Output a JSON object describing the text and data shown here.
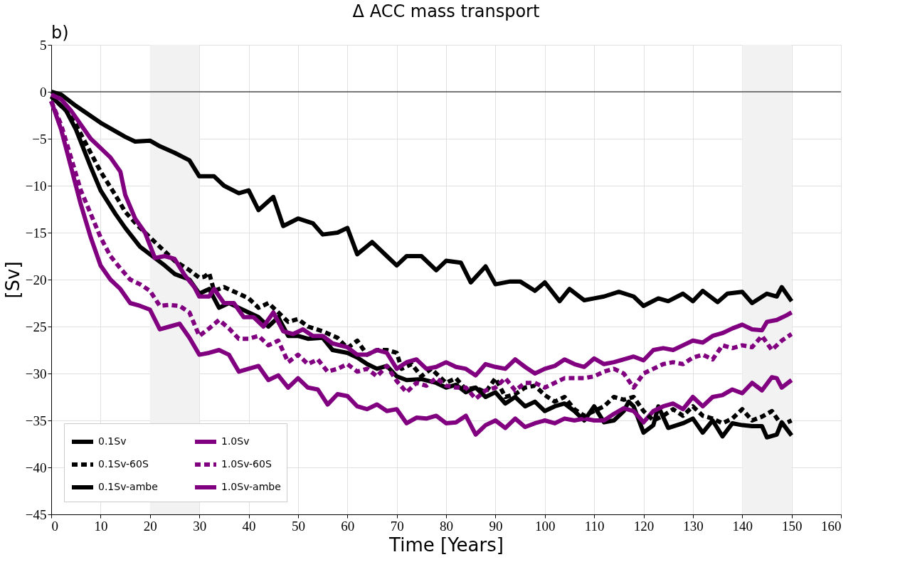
{
  "chart_data": {
    "type": "line",
    "title": "Δ ACC mass transport",
    "annotations": [
      "b)"
    ],
    "xlabel": "Time [Years]",
    "ylabel": "[Sv]",
    "xlim": [
      0,
      160
    ],
    "xticks": [
      0,
      10,
      20,
      30,
      40,
      50,
      60,
      70,
      80,
      90,
      100,
      110,
      120,
      130,
      140,
      150,
      160
    ],
    "ylim": [
      -45,
      5
    ],
    "yticks": [
      -45,
      -40,
      -35,
      -30,
      -25,
      -20,
      -15,
      -10,
      -5,
      0,
      5
    ],
    "grid": true,
    "legend": "bottom left",
    "marker": "none",
    "bands": [
      {
        "axis": "x",
        "from": 20,
        "to": 30,
        "color": "#f2f2f2"
      },
      {
        "axis": "x",
        "from": 140,
        "to": 150,
        "color": "#f2f2f2"
      }
    ],
    "ref_lines": [
      {
        "axis": "y",
        "value": 0,
        "color": "#000000"
      }
    ],
    "series": [
      {
        "name": "0.1Sv",
        "color": "#000000",
        "line_style": "solid",
        "x": [
          0,
          3,
          5,
          8,
          10,
          13,
          15,
          18,
          20,
          23,
          25,
          28,
          30,
          32,
          34,
          36,
          38,
          40,
          42,
          44,
          46,
          48,
          50,
          52,
          55,
          57,
          60,
          62,
          64,
          66,
          68,
          70,
          72,
          75,
          78,
          80,
          82,
          84,
          86,
          88,
          90,
          92,
          94,
          96,
          98,
          100,
          102,
          104,
          106,
          108,
          110,
          112,
          114,
          116,
          117,
          118,
          120,
          122,
          123,
          125,
          128,
          130,
          132,
          134,
          136,
          138,
          140,
          142,
          144,
          145,
          147,
          148,
          150
        ],
        "values": [
          -0.5,
          -2,
          -4,
          -8,
          -10.5,
          -13,
          -14.5,
          -16.5,
          -17.3,
          -18.5,
          -19.4,
          -20,
          -21.5,
          -21,
          -23,
          -22.5,
          -23,
          -23.5,
          -24,
          -25,
          -24,
          -26,
          -26,
          -26.3,
          -26.2,
          -27.5,
          -27.8,
          -28.3,
          -29,
          -29.5,
          -29.2,
          -30.3,
          -30.7,
          -30.6,
          -31,
          -31.5,
          -31.2,
          -32,
          -31.5,
          -32.5,
          -32,
          -33.2,
          -32.5,
          -33.5,
          -33,
          -34,
          -33.5,
          -33.2,
          -34,
          -35,
          -33.5,
          -35.2,
          -35,
          -34,
          -33,
          -33.5,
          -36.3,
          -35.5,
          -33.5,
          -35.8,
          -35.3,
          -34.8,
          -36.3,
          -35,
          -36.7,
          -35.3,
          -35.5,
          -35.6,
          -35.6,
          -36.8,
          -36.5,
          -35.2,
          -36.6
        ]
      },
      {
        "name": "1.0Sv",
        "color": "#800080",
        "line_style": "solid",
        "x": [
          0,
          2,
          4,
          6,
          8,
          10,
          12,
          14,
          16,
          18,
          20,
          22,
          24,
          26,
          28,
          30,
          32,
          34,
          36,
          38,
          40,
          42,
          44,
          46,
          48,
          50,
          52,
          54,
          56,
          58,
          60,
          62,
          64,
          66,
          68,
          70,
          72,
          74,
          76,
          78,
          80,
          82,
          84,
          86,
          88,
          90,
          92,
          94,
          96,
          98,
          100,
          102,
          104,
          106,
          108,
          110,
          112,
          114,
          116,
          118,
          120,
          122,
          124,
          126,
          128,
          130,
          132,
          134,
          136,
          138,
          140,
          142,
          144,
          146,
          147,
          148,
          150
        ],
        "values": [
          -1,
          -4,
          -8,
          -12,
          -15.5,
          -18.5,
          -20,
          -21,
          -22.5,
          -22.8,
          -23.2,
          -25.3,
          -25,
          -24.7,
          -26.2,
          -28,
          -27.8,
          -27.5,
          -28,
          -29.8,
          -29.5,
          -29.2,
          -30.7,
          -30.2,
          -31.5,
          -30.5,
          -31.5,
          -31.7,
          -33.3,
          -32.2,
          -32.4,
          -33.5,
          -33.8,
          -33.3,
          -34,
          -33.8,
          -35.3,
          -34.7,
          -34.8,
          -34.5,
          -35.3,
          -35.2,
          -34.5,
          -36.5,
          -35.5,
          -35,
          -35.8,
          -34.8,
          -35.7,
          -35.3,
          -35,
          -35.3,
          -34.8,
          -35,
          -34.8,
          -35,
          -35,
          -34.3,
          -33.7,
          -34,
          -35.2,
          -34,
          -33.5,
          -33.2,
          -33.8,
          -32.5,
          -33.5,
          -32.5,
          -32.3,
          -31.7,
          -32.1,
          -31,
          -31.8,
          -30.4,
          -30.5,
          -31.5,
          -30.7
        ]
      },
      {
        "name": "0.1Sv-60S",
        "color": "#000000",
        "line_style": "dashed",
        "x": [
          0,
          3,
          5,
          8,
          10,
          13,
          15,
          18,
          20,
          23,
          25,
          28,
          30,
          31,
          32,
          33,
          35,
          38,
          40,
          42,
          44,
          46,
          48,
          50,
          52,
          55,
          58,
          60,
          62,
          64,
          66,
          68,
          70,
          71,
          73,
          75,
          77,
          80,
          82,
          84,
          86,
          88,
          90,
          92,
          94,
          96,
          98,
          100,
          102,
          104,
          106,
          108,
          110,
          112,
          114,
          116,
          118,
          120,
          122,
          124,
          126,
          128,
          130,
          132,
          134,
          136,
          138,
          140,
          142,
          144,
          146,
          148,
          150
        ],
        "values": [
          -0.5,
          -2,
          -3.5,
          -6.5,
          -8.5,
          -11,
          -12.8,
          -14.5,
          -15.5,
          -17,
          -18,
          -19,
          -19.8,
          -19.7,
          -19.3,
          -21.2,
          -20.8,
          -21.5,
          -22,
          -23,
          -22.5,
          -23.5,
          -24.5,
          -24.2,
          -25,
          -25.5,
          -26.2,
          -27.3,
          -26.5,
          -28,
          -27.5,
          -27.5,
          -27.8,
          -29.5,
          -29,
          -30.3,
          -29.5,
          -31,
          -30.5,
          -31.7,
          -31.5,
          -32,
          -30.5,
          -32.5,
          -32.2,
          -31.5,
          -31.3,
          -32.3,
          -33,
          -32.5,
          -33.8,
          -34.5,
          -34,
          -33.5,
          -32.5,
          -32.8,
          -32.5,
          -34,
          -35,
          -34.5,
          -33.8,
          -34.5,
          -33.5,
          -34.5,
          -34.8,
          -35.3,
          -34.8,
          -33.8,
          -35,
          -34.6,
          -34,
          -35.5,
          -35
        ]
      },
      {
        "name": "1.0Sv-60S",
        "color": "#800080",
        "line_style": "dashed",
        "x": [
          0,
          2,
          4,
          6,
          8,
          10,
          12,
          14,
          16,
          18,
          20,
          22,
          24,
          26,
          28,
          30,
          32,
          34,
          36,
          38,
          40,
          42,
          44,
          46,
          48,
          50,
          52,
          54,
          56,
          58,
          60,
          62,
          64,
          66,
          68,
          70,
          72,
          74,
          76,
          78,
          80,
          82,
          84,
          86,
          88,
          90,
          92,
          94,
          96,
          98,
          100,
          102,
          104,
          106,
          108,
          110,
          112,
          114,
          116,
          118,
          120,
          122,
          124,
          126,
          128,
          130,
          132,
          134,
          136,
          138,
          140,
          142,
          144,
          146,
          148,
          150
        ],
        "values": [
          -1,
          -3.5,
          -7,
          -10.5,
          -13,
          -15.5,
          -17.5,
          -18.8,
          -20,
          -20.5,
          -21.2,
          -22.8,
          -22.7,
          -22.8,
          -23.5,
          -26,
          -25.2,
          -24.3,
          -25.2,
          -26.3,
          -26.3,
          -26,
          -27,
          -26.5,
          -28.8,
          -28,
          -29,
          -28.5,
          -29.8,
          -29.5,
          -29,
          -29.8,
          -29.5,
          -30.3,
          -29.2,
          -30.8,
          -32,
          -31,
          -31.3,
          -30.5,
          -31.3,
          -31.5,
          -31.5,
          -32.7,
          -31.8,
          -31.5,
          -30.5,
          -31.8,
          -31,
          -31,
          -31.5,
          -31,
          -30.5,
          -30.5,
          -30.5,
          -30.3,
          -29.8,
          -29.5,
          -30,
          -31.5,
          -30,
          -29.5,
          -29,
          -28.8,
          -29,
          -28.3,
          -28,
          -28.5,
          -27,
          -27.3,
          -27,
          -27.2,
          -26,
          -27.5,
          -26.5,
          -25.8
        ]
      },
      {
        "name": "0.1Sv-ambe",
        "color": "#000000",
        "line_style": "solid",
        "x": [
          0,
          2,
          5,
          10,
          15,
          17,
          20,
          22,
          25,
          28,
          30,
          33,
          35,
          38,
          40,
          42,
          45,
          47,
          50,
          53,
          55,
          58,
          60,
          62,
          65,
          68,
          70,
          72,
          75,
          78,
          80,
          83,
          85,
          88,
          90,
          93,
          95,
          98,
          100,
          103,
          105,
          108,
          110,
          112,
          115,
          118,
          120,
          123,
          125,
          128,
          130,
          132,
          135,
          137,
          140,
          142,
          145,
          147,
          148,
          150
        ],
        "values": [
          0,
          -0.3,
          -1.5,
          -3.3,
          -4.8,
          -5.3,
          -5.2,
          -5.8,
          -6.5,
          -7.3,
          -9,
          -9,
          -10,
          -10.8,
          -10.5,
          -12.6,
          -11.2,
          -14.3,
          -13.5,
          -14,
          -15.2,
          -15,
          -14.5,
          -17.3,
          -16,
          -17.5,
          -18.5,
          -17.5,
          -17.5,
          -19,
          -18,
          -18.2,
          -20.3,
          -18.6,
          -20.5,
          -20.2,
          -20.2,
          -21.2,
          -20.3,
          -22.3,
          -21,
          -22.2,
          -22,
          -21.8,
          -21.3,
          -21.8,
          -22.8,
          -22,
          -22.3,
          -21.5,
          -22.3,
          -21.2,
          -22.4,
          -21.5,
          -21.3,
          -22.5,
          -21.5,
          -21.8,
          -20.8,
          -22.3
        ]
      },
      {
        "name": "1.0Sv-ambe",
        "color": "#800080",
        "line_style": "solid",
        "x": [
          0,
          2,
          4,
          6,
          8,
          10,
          12,
          14,
          15,
          17,
          19,
          21,
          23,
          25,
          27,
          29,
          30,
          32,
          33,
          35,
          37,
          39,
          41,
          43,
          45,
          47,
          49,
          51,
          53,
          55,
          57,
          60,
          62,
          64,
          66,
          68,
          70,
          72,
          74,
          76,
          78,
          80,
          82,
          84,
          86,
          88,
          90,
          92,
          94,
          96,
          98,
          100,
          102,
          104,
          106,
          108,
          110,
          112,
          114,
          116,
          118,
          120,
          122,
          124,
          126,
          128,
          130,
          132,
          134,
          136,
          138,
          140,
          142,
          144,
          145,
          147,
          149,
          150
        ],
        "values": [
          -0.3,
          -0.8,
          -2,
          -3.5,
          -5,
          -6,
          -7,
          -8.5,
          -11,
          -13.5,
          -15,
          -17.7,
          -17.5,
          -17.8,
          -19.5,
          -20.8,
          -21.8,
          -21.8,
          -21,
          -22.5,
          -22.5,
          -24,
          -24,
          -25,
          -23.5,
          -25.5,
          -25.8,
          -25.3,
          -26,
          -26,
          -26.8,
          -27.2,
          -28,
          -28,
          -27.5,
          -27.8,
          -29.5,
          -28.8,
          -28.5,
          -29.5,
          -29.3,
          -28.8,
          -29.3,
          -29.5,
          -30.2,
          -29,
          -29.3,
          -29.5,
          -28.5,
          -29.3,
          -30,
          -29.5,
          -29.2,
          -28.5,
          -29,
          -29.3,
          -28.4,
          -29,
          -28.8,
          -28.5,
          -28.2,
          -28.6,
          -27.5,
          -27.3,
          -27.5,
          -27,
          -26.5,
          -26.7,
          -26,
          -25.7,
          -25.2,
          -24.8,
          -25.3,
          -25.4,
          -24.5,
          -24.3,
          -23.8,
          -23.5
        ]
      }
    ]
  }
}
